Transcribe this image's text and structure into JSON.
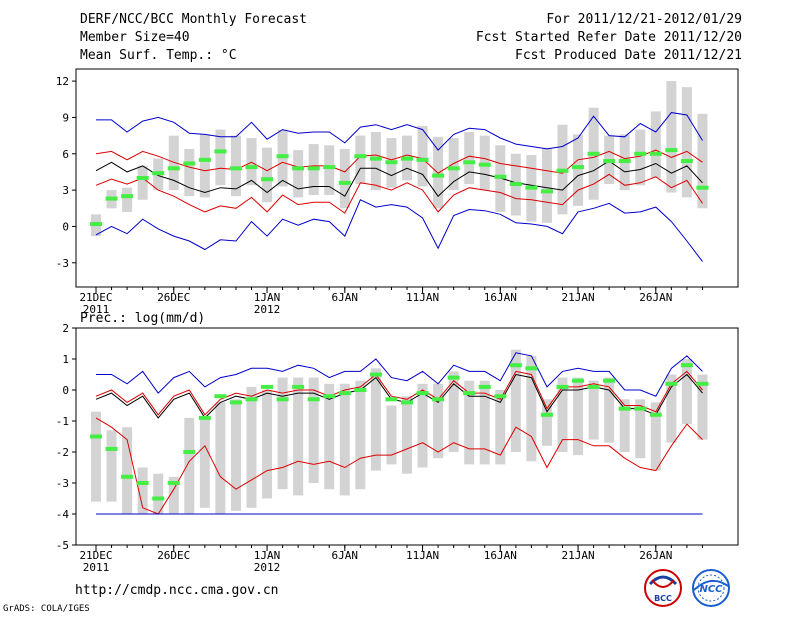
{
  "header": {
    "left": [
      "DERF/NCC/BCC Monthly Forecast",
      "Member Size=40",
      "Mean Surf. Temp.: °C"
    ],
    "right": [
      "For 2011/12/21-2012/01/29",
      "Fcst Started Refer Date 2011/12/20",
      "Fcst Produced Date 2011/12/21"
    ]
  },
  "footer": {
    "url": "http://cmdp.ncc.cma.gov.cn",
    "credit": "GrADS: COLA/IGES",
    "logo_left_text": "BCC",
    "logo_right_text": "NCC"
  },
  "colors": {
    "box": "#d3d3d3",
    "mean_marker": "#44ee44",
    "mean_line": "#000000",
    "inner_line": "#dd0000",
    "outer_line": "#0000cc",
    "axis": "#000000"
  },
  "chart_data": [
    {
      "type": "line",
      "title": "Mean Surf. Temp.: °C",
      "xlabel": "",
      "ylabel": "",
      "ylim": [
        -5,
        13
      ],
      "yticks": [
        -3,
        0,
        3,
        6,
        9,
        12
      ],
      "x_tick_labels": [
        {
          "day": 1,
          "label": "21DEC",
          "sub": "2011"
        },
        {
          "day": 6,
          "label": "26DEC",
          "sub": ""
        },
        {
          "day": 12,
          "label": "1JAN",
          "sub": "2012"
        },
        {
          "day": 17,
          "label": "6JAN",
          "sub": ""
        },
        {
          "day": 22,
          "label": "11JAN",
          "sub": ""
        },
        {
          "day": 27,
          "label": "16JAN",
          "sub": ""
        },
        {
          "day": 32,
          "label": "21JAN",
          "sub": ""
        },
        {
          "day": 37,
          "label": "26JAN",
          "sub": ""
        }
      ],
      "days": [
        1,
        2,
        3,
        4,
        5,
        6,
        7,
        8,
        9,
        10,
        11,
        12,
        13,
        14,
        15,
        16,
        17,
        18,
        19,
        20,
        21,
        22,
        23,
        24,
        25,
        26,
        27,
        28,
        29,
        30,
        31,
        32,
        33,
        34,
        35,
        36,
        37,
        38,
        39,
        40
      ],
      "series": [
        {
          "name": "ensemble mean",
          "role": "mean",
          "values": [
            4.6,
            5.3,
            4.5,
            5.0,
            4.2,
            3.8,
            3.2,
            2.8,
            3.2,
            3.1,
            3.8,
            2.8,
            3.8,
            3.1,
            3.3,
            3.3,
            2.5,
            4.8,
            4.8,
            4.2,
            4.8,
            4.3,
            2.5,
            3.7,
            4.5,
            4.3,
            4.0,
            3.6,
            3.4,
            3.2,
            3.0,
            4.2,
            4.6,
            5.4,
            4.5,
            4.7,
            5.2,
            4.4,
            5.0,
            3.6
          ]
        },
        {
          "name": "upper inner bound",
          "role": "inner",
          "values": [
            6.0,
            6.2,
            5.5,
            6.2,
            5.8,
            5.3,
            4.9,
            4.6,
            4.8,
            4.7,
            5.3,
            4.6,
            5.3,
            4.9,
            5.0,
            5.0,
            4.5,
            5.8,
            5.9,
            5.5,
            5.9,
            5.6,
            4.4,
            5.2,
            5.8,
            5.6,
            5.2,
            5.0,
            4.8,
            4.6,
            4.4,
            5.5,
            5.7,
            6.2,
            5.6,
            5.8,
            6.3,
            5.7,
            6.2,
            5.3
          ]
        },
        {
          "name": "lower inner bound",
          "role": "inner",
          "values": [
            3.4,
            3.9,
            3.5,
            4.0,
            3.0,
            2.5,
            1.8,
            1.2,
            1.7,
            1.5,
            2.4,
            1.2,
            2.6,
            1.8,
            2.0,
            2.0,
            1.1,
            3.6,
            3.4,
            3.0,
            3.6,
            3.0,
            1.2,
            2.6,
            3.2,
            3.0,
            2.8,
            2.3,
            2.2,
            2.0,
            1.8,
            3.0,
            3.5,
            4.3,
            3.4,
            3.6,
            4.1,
            3.2,
            3.8,
            1.9
          ]
        },
        {
          "name": "maximum",
          "role": "outer",
          "values": [
            8.8,
            8.8,
            7.8,
            8.7,
            9.0,
            8.6,
            7.7,
            7.6,
            7.4,
            7.4,
            8.6,
            7.2,
            8.0,
            7.7,
            7.8,
            7.8,
            6.9,
            8.2,
            8.4,
            8.0,
            8.4,
            8.0,
            6.3,
            7.6,
            8.1,
            8.0,
            7.3,
            6.8,
            6.6,
            6.4,
            6.6,
            7.3,
            9.1,
            7.5,
            7.4,
            8.5,
            7.8,
            9.4,
            9.2,
            7.1
          ]
        },
        {
          "name": "minimum",
          "role": "outer",
          "values": [
            -0.7,
            0.0,
            -0.6,
            0.6,
            -0.2,
            -0.8,
            -1.2,
            -1.9,
            -1.1,
            -1.2,
            0.4,
            -0.8,
            0.6,
            0.1,
            0.6,
            0.4,
            -0.8,
            2.2,
            1.6,
            1.8,
            1.6,
            0.7,
            -1.8,
            0.9,
            1.4,
            1.3,
            1.0,
            0.3,
            0.2,
            0.0,
            -0.6,
            1.2,
            1.5,
            1.9,
            1.1,
            1.2,
            1.6,
            0.4,
            -1.2,
            -2.9
          ]
        }
      ],
      "boxes": {
        "low": [
          -0.8,
          1.5,
          1.2,
          2.2,
          3.0,
          3.0,
          2.5,
          2.4,
          3.4,
          2.5,
          3.4,
          2.0,
          3.3,
          2.4,
          2.6,
          2.6,
          1.5,
          3.5,
          3.0,
          3.2,
          3.8,
          3.3,
          1.5,
          3.0,
          3.5,
          3.0,
          1.2,
          0.9,
          0.4,
          0.3,
          1.0,
          1.7,
          2.2,
          3.5,
          3.0,
          3.4,
          4.0,
          2.8,
          2.4,
          1.5
        ],
        "high": [
          1.0,
          3.0,
          3.2,
          5.0,
          5.6,
          7.5,
          6.4,
          7.6,
          8.0,
          7.5,
          7.3,
          6.5,
          8.0,
          6.3,
          6.8,
          6.7,
          6.4,
          7.5,
          7.8,
          7.3,
          7.5,
          8.3,
          7.4,
          7.3,
          7.8,
          7.5,
          6.7,
          6.0,
          5.9,
          6.5,
          8.4,
          7.6,
          9.8,
          7.5,
          7.6,
          8.0,
          9.5,
          12.0,
          11.5,
          9.3
        ],
        "median": [
          0.2,
          2.3,
          2.5,
          4.0,
          4.4,
          4.8,
          5.2,
          5.5,
          6.2,
          4.8,
          4.9,
          3.9,
          5.8,
          4.8,
          4.8,
          4.9,
          3.6,
          5.8,
          5.6,
          5.3,
          5.6,
          5.5,
          4.2,
          4.8,
          5.3,
          5.1,
          4.1,
          3.5,
          3.2,
          2.9,
          4.6,
          4.9,
          6.0,
          5.4,
          5.4,
          6.0,
          6.0,
          6.3,
          5.4,
          3.2
        ]
      }
    },
    {
      "type": "line",
      "title": "Prec.: log(mm/d)",
      "xlabel": "",
      "ylabel": "",
      "ylim": [
        -5,
        2
      ],
      "yticks": [
        -5,
        -4,
        -3,
        -2,
        -1,
        0,
        1,
        2
      ],
      "x_tick_labels": [
        {
          "day": 1,
          "label": "21DEC",
          "sub": "2011"
        },
        {
          "day": 6,
          "label": "26DEC",
          "sub": ""
        },
        {
          "day": 12,
          "label": "1JAN",
          "sub": "2012"
        },
        {
          "day": 17,
          "label": "6JAN",
          "sub": ""
        },
        {
          "day": 22,
          "label": "11JAN",
          "sub": ""
        },
        {
          "day": 27,
          "label": "16JAN",
          "sub": ""
        },
        {
          "day": 32,
          "label": "21JAN",
          "sub": ""
        },
        {
          "day": 37,
          "label": "26JAN",
          "sub": ""
        }
      ],
      "days": [
        1,
        2,
        3,
        4,
        5,
        6,
        7,
        8,
        9,
        10,
        11,
        12,
        13,
        14,
        15,
        16,
        17,
        18,
        19,
        20,
        21,
        22,
        23,
        24,
        25,
        26,
        27,
        28,
        29,
        30,
        31,
        32,
        33,
        34,
        35,
        36,
        37,
        38,
        39,
        40
      ],
      "series": [
        {
          "name": "ensemble mean",
          "role": "mean",
          "values": [
            -0.3,
            -0.1,
            -0.5,
            -0.2,
            -0.9,
            -0.3,
            -0.1,
            -0.9,
            -0.4,
            -0.2,
            -0.3,
            -0.1,
            -0.2,
            -0.1,
            -0.1,
            -0.3,
            -0.1,
            0.0,
            0.4,
            -0.3,
            -0.4,
            -0.1,
            -0.4,
            0.2,
            -0.2,
            -0.2,
            -0.4,
            0.5,
            0.4,
            -0.7,
            0.0,
            0.0,
            0.1,
            0.0,
            -0.6,
            -0.6,
            -0.8,
            0.1,
            0.5,
            -0.1
          ]
        },
        {
          "name": "upper inner bound",
          "role": "inner",
          "values": [
            -0.2,
            0.0,
            -0.4,
            -0.1,
            -0.8,
            -0.2,
            0.0,
            -0.8,
            -0.3,
            -0.1,
            -0.2,
            0.0,
            -0.1,
            0.0,
            0.0,
            -0.2,
            0.0,
            0.1,
            0.5,
            -0.2,
            -0.3,
            0.0,
            -0.3,
            0.3,
            -0.1,
            -0.1,
            -0.3,
            0.6,
            0.5,
            -0.6,
            0.1,
            0.1,
            0.2,
            0.1,
            -0.5,
            -0.5,
            -0.7,
            0.2,
            0.6,
            0.0
          ]
        },
        {
          "name": "lower inner bound",
          "role": "inner",
          "values": [
            -0.9,
            -1.2,
            -1.6,
            -3.8,
            -4.0,
            -3.2,
            -2.3,
            -1.8,
            -2.8,
            -3.2,
            -2.9,
            -2.6,
            -2.5,
            -2.3,
            -2.4,
            -2.3,
            -2.5,
            -2.2,
            -2.1,
            -2.1,
            -1.9,
            -1.7,
            -2.0,
            -1.7,
            -1.9,
            -1.9,
            -2.1,
            -1.2,
            -1.5,
            -2.5,
            -1.6,
            -1.6,
            -1.8,
            -1.8,
            -2.2,
            -2.5,
            -2.6,
            -1.8,
            -1.1,
            -1.6
          ]
        },
        {
          "name": "maximum",
          "role": "outer",
          "values": [
            0.5,
            0.5,
            0.2,
            0.6,
            -0.1,
            0.4,
            0.6,
            0.1,
            0.4,
            0.5,
            0.7,
            0.7,
            0.6,
            0.8,
            0.7,
            0.4,
            0.6,
            0.6,
            1.0,
            0.4,
            0.3,
            0.6,
            0.2,
            0.8,
            0.6,
            0.6,
            0.3,
            1.2,
            1.1,
            0.1,
            0.6,
            0.7,
            0.6,
            0.6,
            0.0,
            0.0,
            -0.2,
            0.7,
            1.1,
            0.6
          ]
        },
        {
          "name": "minimum",
          "role": "outer",
          "values": [
            -4.0,
            -4.0,
            -4.0,
            -4.0,
            -4.0,
            -4.0,
            -4.0,
            -4.0,
            -4.0,
            -4.0,
            -4.0,
            -4.0,
            -4.0,
            -4.0,
            -4.0,
            -4.0,
            -4.0,
            -4.0,
            -4.0,
            -4.0,
            -4.0,
            -4.0,
            -4.0,
            -4.0,
            -4.0,
            -4.0,
            -4.0,
            -4.0,
            -4.0,
            -4.0,
            -4.0,
            -4.0,
            -4.0,
            -4.0,
            -4.0,
            -4.0,
            -4.0,
            -4.0,
            -4.0,
            -4.0
          ]
        }
      ],
      "boxes": {
        "low": [
          -3.6,
          -3.6,
          -4.0,
          -4.0,
          -4.0,
          -4.0,
          -4.0,
          -3.8,
          -4.0,
          -3.9,
          -3.8,
          -3.5,
          -3.2,
          -3.4,
          -3.0,
          -3.2,
          -3.4,
          -3.2,
          -2.6,
          -2.4,
          -2.7,
          -2.5,
          -2.2,
          -2.0,
          -2.4,
          -2.4,
          -2.4,
          -2.0,
          -2.3,
          -1.8,
          -2.0,
          -2.1,
          -1.6,
          -1.7,
          -2.0,
          -2.2,
          -2.6,
          -1.7,
          -1.1,
          -1.6
        ],
        "high": [
          -0.7,
          -1.3,
          -1.2,
          -2.5,
          -2.7,
          -2.8,
          -0.9,
          -0.9,
          -0.4,
          -0.3,
          0.1,
          0.0,
          0.4,
          0.4,
          0.4,
          0.2,
          0.2,
          0.3,
          0.7,
          -0.5,
          -0.2,
          0.2,
          0.2,
          0.6,
          0.3,
          0.3,
          0.0,
          1.3,
          1.1,
          -0.3,
          0.4,
          0.4,
          0.3,
          0.4,
          -0.3,
          -0.3,
          -0.4,
          0.5,
          1.0,
          0.5
        ],
        "median": [
          -1.5,
          -1.9,
          -2.8,
          -3.0,
          -3.5,
          -3.0,
          -2.0,
          -0.9,
          -0.2,
          -0.4,
          -0.3,
          0.1,
          -0.3,
          0.1,
          -0.3,
          -0.2,
          -0.1,
          0.0,
          0.5,
          -0.3,
          -0.4,
          -0.1,
          -0.3,
          0.4,
          -0.1,
          0.1,
          -0.2,
          0.8,
          0.7,
          -0.8,
          0.1,
          0.3,
          0.1,
          0.3,
          -0.6,
          -0.6,
          -0.8,
          0.2,
          0.8,
          0.2
        ]
      }
    }
  ]
}
